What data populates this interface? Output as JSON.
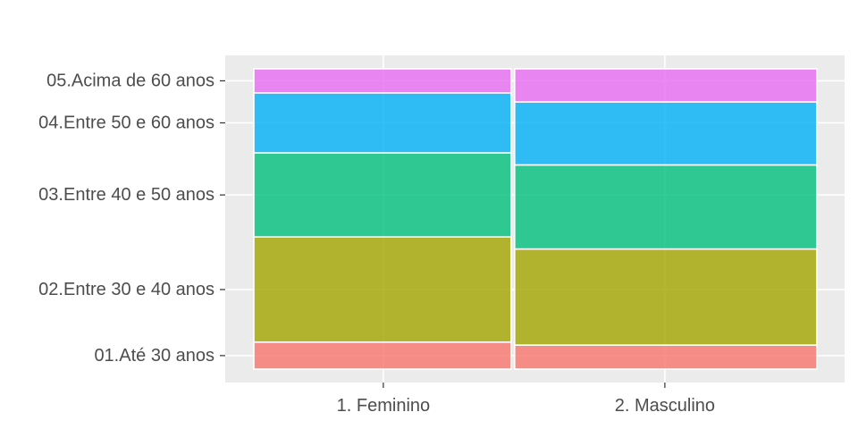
{
  "chart_data": {
    "type": "mosaic",
    "x": [
      "1. Feminino",
      "2. Masculino"
    ],
    "x_proportions": [
      0.46,
      0.54
    ],
    "categories": [
      "01.Até 30 anos",
      "02.Entre 30 e 40 anos",
      "03.Entre 40 e 50 anos",
      "04.Entre 50 e 60 anos",
      "05.Acima de 60 anos"
    ],
    "series": [
      {
        "name": "1. Feminino",
        "values": [
          0.09,
          0.35,
          0.28,
          0.2,
          0.08
        ]
      },
      {
        "name": "2. Masculino",
        "values": [
          0.08,
          0.32,
          0.28,
          0.21,
          0.11
        ]
      }
    ],
    "colors": {
      "01.Até 30 anos": "#F8766D",
      "02.Entre 30 e 40 anos": "#A3A500",
      "03.Entre 40 e 50 anos": "#00BF7D",
      "04.Entre 50 e 60 anos": "#00B0F6",
      "05.Acima de 60 anos": "#E76BF3"
    },
    "panel_background": "#EBEBEB",
    "grid": true,
    "title": "",
    "xlabel": "",
    "ylabel": ""
  }
}
